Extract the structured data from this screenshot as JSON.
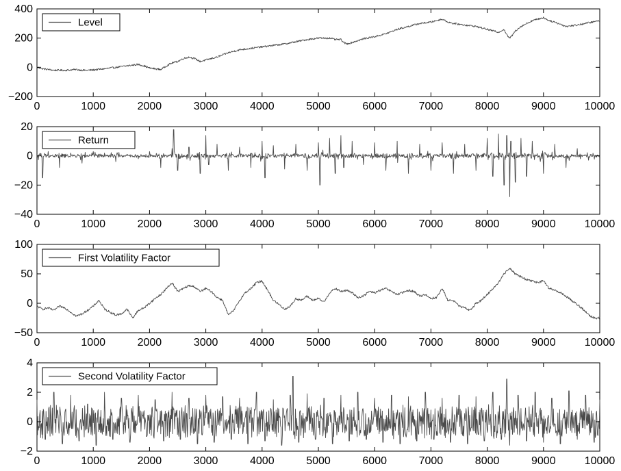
{
  "chart_data": [
    {
      "type": "line",
      "title": "",
      "xlabel": "",
      "ylabel": "",
      "xlim": [
        0,
        10000
      ],
      "ylim": [
        -200,
        400
      ],
      "xticks": [
        0,
        1000,
        2000,
        3000,
        4000,
        5000,
        6000,
        7000,
        8000,
        9000,
        10000
      ],
      "yticks": [
        -200,
        0,
        200,
        400
      ],
      "legend": "top-left",
      "grid": false,
      "color": "#4a4a4a",
      "series": [
        {
          "name": "Level",
          "x": [
            0,
            100,
            200,
            300,
            400,
            500,
            600,
            700,
            800,
            900,
            1000,
            1200,
            1400,
            1600,
            1800,
            1900,
            2000,
            2100,
            2200,
            2300,
            2400,
            2500,
            2600,
            2700,
            2800,
            2900,
            3000,
            3200,
            3400,
            3600,
            3800,
            4000,
            4200,
            4400,
            4600,
            4800,
            5000,
            5200,
            5300,
            5400,
            5450,
            5500,
            5600,
            5800,
            6000,
            6200,
            6400,
            6600,
            6800,
            7000,
            7100,
            7200,
            7300,
            7400,
            7600,
            7800,
            8000,
            8100,
            8200,
            8300,
            8350,
            8400,
            8450,
            8500,
            8600,
            8700,
            8800,
            8900,
            9000,
            9100,
            9200,
            9300,
            9400,
            9500,
            9600,
            9800,
            10000
          ],
          "values": [
            0,
            -10,
            -15,
            -20,
            -20,
            -20,
            -18,
            -15,
            -20,
            -20,
            -18,
            -10,
            0,
            10,
            20,
            10,
            -5,
            -10,
            -15,
            10,
            30,
            40,
            60,
            70,
            60,
            40,
            50,
            70,
            100,
            120,
            130,
            140,
            150,
            160,
            175,
            190,
            200,
            200,
            190,
            190,
            170,
            160,
            170,
            195,
            210,
            230,
            260,
            280,
            300,
            310,
            320,
            330,
            310,
            300,
            290,
            280,
            260,
            250,
            240,
            260,
            220,
            200,
            220,
            250,
            280,
            300,
            320,
            330,
            340,
            320,
            310,
            295,
            280,
            285,
            290,
            305,
            320
          ]
        }
      ]
    },
    {
      "type": "line",
      "title": "",
      "xlabel": "",
      "ylabel": "",
      "xlim": [
        0,
        10000
      ],
      "ylim": [
        -40,
        20
      ],
      "xticks": [
        0,
        1000,
        2000,
        3000,
        4000,
        5000,
        6000,
        7000,
        8000,
        9000,
        10000
      ],
      "yticks": [
        -40,
        -20,
        0,
        20
      ],
      "legend": "top-left",
      "grid": false,
      "color": "#4a4a4a",
      "series": [
        {
          "name": "Return",
          "x": [
            0,
            100,
            200,
            400,
            600,
            800,
            1000,
            1200,
            1400,
            1600,
            1800,
            2000,
            2200,
            2400,
            2430,
            2500,
            2700,
            2900,
            3000,
            3050,
            3200,
            3400,
            3600,
            3800,
            4000,
            4050,
            4200,
            4400,
            4600,
            4800,
            5000,
            5030,
            5200,
            5300,
            5400,
            5450,
            5600,
            5800,
            6000,
            6200,
            6400,
            6600,
            6800,
            7000,
            7200,
            7400,
            7600,
            7800,
            8000,
            8100,
            8200,
            8300,
            8350,
            8400,
            8420,
            8500,
            8600,
            8700,
            8800,
            9000,
            9200,
            9400,
            9600,
            9800,
            10000
          ],
          "values": [
            0,
            -15,
            3,
            -8,
            2,
            -5,
            3,
            2,
            -4,
            1,
            -2,
            3,
            -8,
            5,
            18,
            -10,
            6,
            -12,
            14,
            -6,
            8,
            -10,
            6,
            -8,
            10,
            -15,
            7,
            -9,
            8,
            -10,
            9,
            -20,
            12,
            -12,
            14,
            -8,
            10,
            -6,
            9,
            -10,
            10,
            -12,
            8,
            -10,
            9,
            -12,
            8,
            -10,
            12,
            -14,
            15,
            -20,
            14,
            -28,
            10,
            -18,
            12,
            -14,
            10,
            -12,
            8,
            -8,
            5,
            -3,
            0
          ]
        }
      ]
    },
    {
      "type": "line",
      "title": "",
      "xlabel": "",
      "ylabel": "",
      "xlim": [
        0,
        10000
      ],
      "ylim": [
        -50,
        100
      ],
      "xticks": [
        0,
        1000,
        2000,
        3000,
        4000,
        5000,
        6000,
        7000,
        8000,
        9000,
        10000
      ],
      "yticks": [
        -50,
        0,
        50,
        100
      ],
      "legend": "top-left",
      "grid": false,
      "color": "#4a4a4a",
      "series": [
        {
          "name": "First Volatility Factor",
          "x": [
            0,
            100,
            200,
            300,
            400,
            500,
            600,
            700,
            800,
            900,
            1000,
            1100,
            1200,
            1300,
            1400,
            1500,
            1600,
            1700,
            1800,
            1900,
            2000,
            2100,
            2200,
            2300,
            2400,
            2500,
            2600,
            2700,
            2800,
            2900,
            3000,
            3100,
            3200,
            3300,
            3400,
            3500,
            3600,
            3700,
            3800,
            3900,
            4000,
            4100,
            4200,
            4300,
            4400,
            4500,
            4600,
            4700,
            4800,
            4900,
            5000,
            5100,
            5200,
            5300,
            5400,
            5500,
            5600,
            5700,
            5800,
            5900,
            6000,
            6100,
            6200,
            6300,
            6400,
            6500,
            6600,
            6700,
            6800,
            6900,
            7000,
            7100,
            7200,
            7300,
            7400,
            7500,
            7600,
            7700,
            7800,
            7900,
            8000,
            8100,
            8200,
            8300,
            8350,
            8400,
            8500,
            8600,
            8700,
            8800,
            8900,
            9000,
            9100,
            9200,
            9300,
            9400,
            9500,
            9600,
            9700,
            9800,
            9900,
            10000
          ],
          "values": [
            -5,
            -10,
            -8,
            -12,
            -5,
            -8,
            -15,
            -22,
            -18,
            -12,
            -5,
            5,
            -10,
            -15,
            -20,
            -18,
            -10,
            -25,
            -12,
            -8,
            0,
            8,
            15,
            25,
            35,
            20,
            25,
            30,
            28,
            20,
            25,
            20,
            10,
            5,
            -20,
            -12,
            5,
            18,
            25,
            35,
            38,
            22,
            5,
            -2,
            -10,
            -5,
            8,
            5,
            12,
            5,
            8,
            2,
            18,
            25,
            20,
            22,
            18,
            10,
            12,
            20,
            18,
            22,
            25,
            20,
            15,
            18,
            22,
            20,
            12,
            15,
            8,
            10,
            25,
            5,
            5,
            -5,
            -8,
            -12,
            0,
            5,
            15,
            25,
            35,
            50,
            55,
            60,
            50,
            45,
            40,
            38,
            35,
            38,
            25,
            22,
            18,
            12,
            5,
            -2,
            -10,
            -20,
            -25,
            -25
          ]
        }
      ]
    },
    {
      "type": "line",
      "title": "",
      "xlabel": "",
      "ylabel": "",
      "xlim": [
        0,
        10000
      ],
      "ylim": [
        -2,
        4
      ],
      "xticks": [
        0,
        1000,
        2000,
        3000,
        4000,
        5000,
        6000,
        7000,
        8000,
        9000,
        10000
      ],
      "yticks": [
        -2,
        0,
        2,
        4
      ],
      "legend": "top-left",
      "grid": false,
      "color": "#4a4a4a",
      "series": [
        {
          "name": "Second Volatility Factor",
          "x": [
            0,
            150,
            300,
            450,
            600,
            750,
            900,
            1050,
            1200,
            1350,
            1500,
            1650,
            1800,
            1950,
            2100,
            2250,
            2400,
            2550,
            2700,
            2850,
            3000,
            3150,
            3300,
            3450,
            3600,
            3750,
            3900,
            4050,
            4200,
            4350,
            4500,
            4550,
            4650,
            4800,
            4950,
            5100,
            5250,
            5400,
            5550,
            5700,
            5850,
            6000,
            6150,
            6300,
            6450,
            6600,
            6750,
            6900,
            7050,
            7200,
            7350,
            7500,
            7650,
            7800,
            7950,
            8100,
            8250,
            8350,
            8400,
            8550,
            8700,
            8850,
            9000,
            9150,
            9300,
            9450,
            9600,
            9750,
            9900,
            10000
          ],
          "values": [
            1.5,
            -1.2,
            2.0,
            -1.5,
            1.8,
            -1.3,
            1.2,
            -1.6,
            2.0,
            -1.2,
            1.6,
            -1.4,
            1.8,
            -1.0,
            1.5,
            -1.3,
            2.0,
            -1.2,
            1.6,
            -1.5,
            1.8,
            -1.4,
            1.7,
            -1.2,
            1.6,
            -1.5,
            2.0,
            -1.3,
            1.5,
            -1.6,
            1.8,
            3.1,
            -1.4,
            1.9,
            -1.2,
            1.6,
            -1.5,
            1.8,
            -1.3,
            2.0,
            -1.2,
            1.6,
            -1.4,
            1.8,
            -1.5,
            1.7,
            -1.3,
            2.0,
            -1.2,
            1.6,
            -1.4,
            1.8,
            -1.5,
            1.7,
            -1.3,
            2.0,
            -1.2,
            2.9,
            -1.6,
            1.8,
            -1.3,
            2.0,
            -1.4,
            1.6,
            -1.5,
            2.1,
            -1.2,
            1.8,
            -1.4,
            1.5
          ]
        }
      ]
    }
  ]
}
